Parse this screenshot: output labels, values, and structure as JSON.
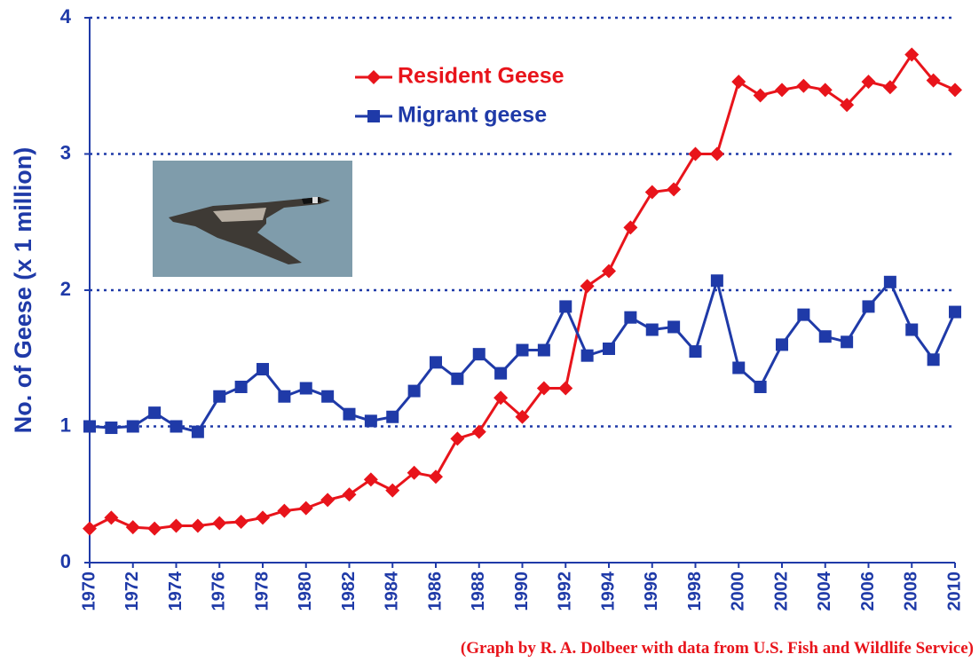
{
  "chart_data": {
    "type": "line",
    "y_label": "No. of Geese (x 1 million)",
    "credit": "(Graph by R. A. Dolbeer with data from U.S. Fish and Wildlife Service)",
    "x": [
      1970,
      1971,
      1972,
      1973,
      1974,
      1975,
      1976,
      1977,
      1978,
      1979,
      1980,
      1981,
      1982,
      1983,
      1984,
      1985,
      1986,
      1987,
      1988,
      1989,
      1990,
      1991,
      1992,
      1993,
      1994,
      1995,
      1996,
      1997,
      1998,
      1999,
      2000,
      2001,
      2002,
      2003,
      2004,
      2005,
      2006,
      2007,
      2008,
      2009,
      2010
    ],
    "series": [
      {
        "name": "Resident Geese",
        "color": "#e8141b",
        "marker": "diamond",
        "values": [
          0.25,
          0.33,
          0.26,
          0.25,
          0.27,
          0.27,
          0.29,
          0.3,
          0.33,
          0.38,
          0.4,
          0.46,
          0.5,
          0.61,
          0.53,
          0.66,
          0.63,
          0.91,
          0.96,
          1.21,
          1.07,
          1.28,
          1.28,
          2.03,
          2.14,
          2.46,
          2.72,
          2.74,
          3.0,
          3.0,
          3.53,
          3.43,
          3.47,
          3.5,
          3.47,
          3.36,
          3.53,
          3.49,
          3.73,
          3.54,
          3.47
        ]
      },
      {
        "name": "Migrant geese",
        "color": "#1f3aa8",
        "marker": "square",
        "values": [
          1.0,
          0.99,
          1.0,
          1.1,
          1.0,
          0.96,
          1.22,
          1.29,
          1.42,
          1.22,
          1.28,
          1.22,
          1.09,
          1.04,
          1.07,
          1.26,
          1.47,
          1.35,
          1.53,
          1.39,
          1.56,
          1.56,
          1.88,
          1.52,
          1.57,
          1.8,
          1.71,
          1.73,
          1.55,
          2.07,
          1.43,
          1.29,
          1.6,
          1.82,
          1.66,
          1.62,
          1.88,
          2.06,
          1.71,
          1.49,
          1.84
        ]
      }
    ],
    "xlim": [
      1970,
      2010
    ],
    "xticks": [
      1970,
      1972,
      1974,
      1976,
      1978,
      1980,
      1982,
      1984,
      1986,
      1988,
      1990,
      1992,
      1994,
      1996,
      1998,
      2000,
      2002,
      2004,
      2006,
      2008,
      2010
    ],
    "ylim": [
      0,
      4
    ],
    "yticks": [
      0,
      1,
      2,
      3,
      4
    ],
    "grid": true
  }
}
